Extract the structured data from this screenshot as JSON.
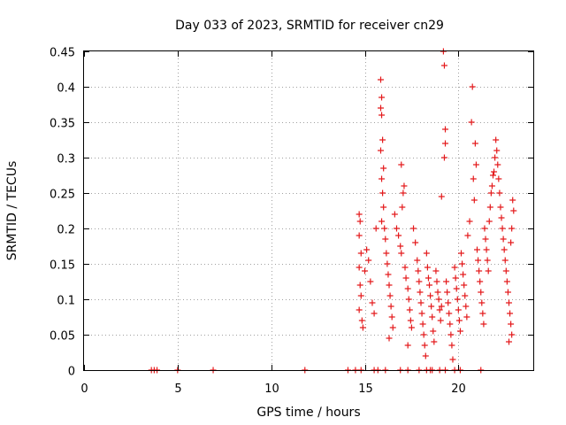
{
  "chart_data": {
    "type": "scatter",
    "title": "Day 033 of 2023, SRMTID for receiver cn29",
    "xlabel": "GPS time / hours",
    "ylabel": "SRMTID / TECUs",
    "xlim": [
      0,
      24
    ],
    "ylim": [
      0,
      0.45
    ],
    "xticks": [
      0,
      5,
      10,
      15,
      20
    ],
    "xtick_labels": [
      "0",
      "5",
      "10",
      "15",
      "20"
    ],
    "yticks": [
      0,
      0.05,
      0.1,
      0.15,
      0.2,
      0.25,
      0.3,
      0.35,
      0.4,
      0.45
    ],
    "ytick_labels": [
      "0",
      "0.05",
      "0.1",
      "0.15",
      "0.2",
      "0.25",
      "0.3",
      "0.35",
      "0.4",
      "0.45"
    ],
    "grid": true,
    "marker": "+",
    "marker_color": "#e41a1c",
    "series": [
      {
        "name": "SRMTID",
        "points": [
          [
            3.6,
            0
          ],
          [
            3.75,
            0
          ],
          [
            3.9,
            0
          ],
          [
            5.0,
            0
          ],
          [
            6.9,
            0
          ],
          [
            11.8,
            0
          ],
          [
            14.1,
            0
          ],
          [
            14.5,
            0
          ],
          [
            14.8,
            0
          ],
          [
            15.5,
            0
          ],
          [
            15.7,
            0
          ],
          [
            16.1,
            0
          ],
          [
            16.9,
            0
          ],
          [
            17.3,
            0
          ],
          [
            17.9,
            0
          ],
          [
            18.3,
            0
          ],
          [
            18.5,
            0
          ],
          [
            18.6,
            0
          ],
          [
            19.0,
            0
          ],
          [
            19.3,
            0
          ],
          [
            19.8,
            0
          ],
          [
            20.1,
            0
          ],
          [
            21.2,
            0
          ],
          [
            14.7,
            0.22
          ],
          [
            14.75,
            0.21
          ],
          [
            14.7,
            0.19
          ],
          [
            14.8,
            0.165
          ],
          [
            14.7,
            0.145
          ],
          [
            14.75,
            0.12
          ],
          [
            14.8,
            0.105
          ],
          [
            14.7,
            0.085
          ],
          [
            14.85,
            0.07
          ],
          [
            14.9,
            0.06
          ],
          [
            15.0,
            0.14
          ],
          [
            15.1,
            0.17
          ],
          [
            15.2,
            0.155
          ],
          [
            15.3,
            0.125
          ],
          [
            15.4,
            0.095
          ],
          [
            15.5,
            0.08
          ],
          [
            15.6,
            0.2
          ],
          [
            15.85,
            0.41
          ],
          [
            15.9,
            0.385
          ],
          [
            15.85,
            0.37
          ],
          [
            15.9,
            0.36
          ],
          [
            15.95,
            0.325
          ],
          [
            15.85,
            0.31
          ],
          [
            16.0,
            0.285
          ],
          [
            15.9,
            0.27
          ],
          [
            15.95,
            0.25
          ],
          [
            16.0,
            0.23
          ],
          [
            15.9,
            0.21
          ],
          [
            16.05,
            0.2
          ],
          [
            16.1,
            0.185
          ],
          [
            16.15,
            0.165
          ],
          [
            16.2,
            0.15
          ],
          [
            16.25,
            0.135
          ],
          [
            16.3,
            0.12
          ],
          [
            16.35,
            0.105
          ],
          [
            16.4,
            0.09
          ],
          [
            16.45,
            0.075
          ],
          [
            16.5,
            0.06
          ],
          [
            16.3,
            0.045
          ],
          [
            16.6,
            0.22
          ],
          [
            16.7,
            0.2
          ],
          [
            16.8,
            0.19
          ],
          [
            16.9,
            0.175
          ],
          [
            16.95,
            0.165
          ],
          [
            17.0,
            0.23
          ],
          [
            17.05,
            0.25
          ],
          [
            17.1,
            0.26
          ],
          [
            16.95,
            0.29
          ],
          [
            17.15,
            0.145
          ],
          [
            17.2,
            0.13
          ],
          [
            17.3,
            0.115
          ],
          [
            17.35,
            0.1
          ],
          [
            17.4,
            0.085
          ],
          [
            17.45,
            0.07
          ],
          [
            17.5,
            0.06
          ],
          [
            17.3,
            0.035
          ],
          [
            17.6,
            0.2
          ],
          [
            17.7,
            0.18
          ],
          [
            17.8,
            0.155
          ],
          [
            17.85,
            0.14
          ],
          [
            17.9,
            0.125
          ],
          [
            17.95,
            0.11
          ],
          [
            18.0,
            0.095
          ],
          [
            18.05,
            0.08
          ],
          [
            18.1,
            0.065
          ],
          [
            18.15,
            0.05
          ],
          [
            18.2,
            0.035
          ],
          [
            18.25,
            0.02
          ],
          [
            18.3,
            0.165
          ],
          [
            18.35,
            0.145
          ],
          [
            18.4,
            0.13
          ],
          [
            18.45,
            0.12
          ],
          [
            18.5,
            0.105
          ],
          [
            18.55,
            0.09
          ],
          [
            18.6,
            0.075
          ],
          [
            18.65,
            0.055
          ],
          [
            18.7,
            0.04
          ],
          [
            18.8,
            0.14
          ],
          [
            18.85,
            0.125
          ],
          [
            18.9,
            0.11
          ],
          [
            18.95,
            0.1
          ],
          [
            19.0,
            0.085
          ],
          [
            19.05,
            0.07
          ],
          [
            19.1,
            0.09
          ],
          [
            19.2,
            0.45
          ],
          [
            19.25,
            0.43
          ],
          [
            19.3,
            0.34
          ],
          [
            19.3,
            0.32
          ],
          [
            19.25,
            0.3
          ],
          [
            19.1,
            0.245
          ],
          [
            19.35,
            0.125
          ],
          [
            19.4,
            0.11
          ],
          [
            19.45,
            0.095
          ],
          [
            19.5,
            0.08
          ],
          [
            19.55,
            0.065
          ],
          [
            19.6,
            0.05
          ],
          [
            19.65,
            0.035
          ],
          [
            19.7,
            0.015
          ],
          [
            19.8,
            0.145
          ],
          [
            19.85,
            0.13
          ],
          [
            19.9,
            0.115
          ],
          [
            19.95,
            0.1
          ],
          [
            20.0,
            0.085
          ],
          [
            20.05,
            0.07
          ],
          [
            20.1,
            0.055
          ],
          [
            20.15,
            0.165
          ],
          [
            20.2,
            0.15
          ],
          [
            20.25,
            0.135
          ],
          [
            20.3,
            0.12
          ],
          [
            20.35,
            0.105
          ],
          [
            20.4,
            0.09
          ],
          [
            20.45,
            0.075
          ],
          [
            20.5,
            0.19
          ],
          [
            20.6,
            0.21
          ],
          [
            20.7,
            0.35
          ],
          [
            20.75,
            0.4
          ],
          [
            20.8,
            0.27
          ],
          [
            20.85,
            0.24
          ],
          [
            20.9,
            0.32
          ],
          [
            20.95,
            0.29
          ],
          [
            21.0,
            0.17
          ],
          [
            21.05,
            0.155
          ],
          [
            21.1,
            0.14
          ],
          [
            21.15,
            0.125
          ],
          [
            21.2,
            0.11
          ],
          [
            21.25,
            0.095
          ],
          [
            21.3,
            0.08
          ],
          [
            21.35,
            0.065
          ],
          [
            21.4,
            0.2
          ],
          [
            21.45,
            0.185
          ],
          [
            21.5,
            0.17
          ],
          [
            21.55,
            0.155
          ],
          [
            21.6,
            0.14
          ],
          [
            21.65,
            0.21
          ],
          [
            21.7,
            0.23
          ],
          [
            21.75,
            0.25
          ],
          [
            21.8,
            0.26
          ],
          [
            21.85,
            0.275
          ],
          [
            21.9,
            0.28
          ],
          [
            21.95,
            0.3
          ],
          [
            22.0,
            0.325
          ],
          [
            22.05,
            0.31
          ],
          [
            22.1,
            0.29
          ],
          [
            22.15,
            0.27
          ],
          [
            22.2,
            0.25
          ],
          [
            22.25,
            0.23
          ],
          [
            22.3,
            0.215
          ],
          [
            22.35,
            0.2
          ],
          [
            22.4,
            0.185
          ],
          [
            22.45,
            0.17
          ],
          [
            22.5,
            0.155
          ],
          [
            22.55,
            0.14
          ],
          [
            22.6,
            0.125
          ],
          [
            22.65,
            0.11
          ],
          [
            22.7,
            0.095
          ],
          [
            22.75,
            0.08
          ],
          [
            22.8,
            0.065
          ],
          [
            22.85,
            0.05
          ],
          [
            22.7,
            0.04
          ],
          [
            22.9,
            0.24
          ],
          [
            22.95,
            0.225
          ],
          [
            22.85,
            0.2
          ],
          [
            22.8,
            0.18
          ]
        ]
      }
    ]
  }
}
